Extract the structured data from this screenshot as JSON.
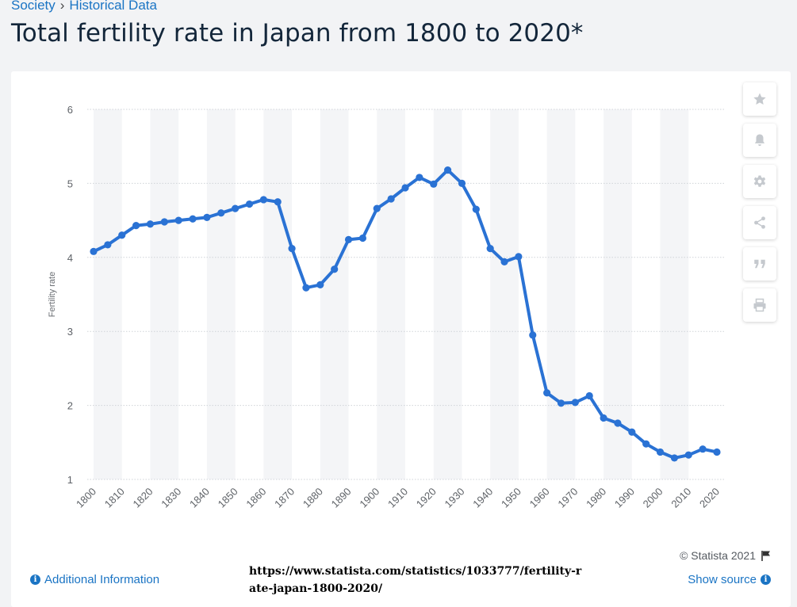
{
  "breadcrumb": {
    "items": [
      "Society",
      "Historical Data"
    ],
    "separator": "›"
  },
  "page_title": "Total fertility rate in Japan from 1800 to 2020*",
  "colors": {
    "line": "#2a72d4",
    "band": "#f4f5f7",
    "grid": "#cfd3d8",
    "link": "#1a74c4"
  },
  "toolbar": [
    {
      "icon": "star-icon",
      "label": ""
    },
    {
      "icon": "bell-icon",
      "label": ""
    },
    {
      "icon": "gear-icon",
      "label": ""
    },
    {
      "icon": "share-icon",
      "label": ""
    },
    {
      "icon": "quote-icon",
      "label": ""
    },
    {
      "icon": "print-icon",
      "label": ""
    }
  ],
  "chart_data": {
    "type": "line",
    "title": "",
    "xlabel": "",
    "ylabel": "Fertility rate",
    "ylim": [
      1,
      6
    ],
    "yticks": [
      1,
      2,
      3,
      4,
      5,
      6
    ],
    "xticks": [
      "1800",
      "1810",
      "1820",
      "1830",
      "1840",
      "1850",
      "1860",
      "1870",
      "1880",
      "1890",
      "1900",
      "1910",
      "1920",
      "1930",
      "1940",
      "1950",
      "1960",
      "1970",
      "1980",
      "1990",
      "2000",
      "2010",
      "2020"
    ],
    "grid": true,
    "legend": "none",
    "x": [
      1800,
      1805,
      1810,
      1815,
      1820,
      1825,
      1830,
      1835,
      1840,
      1845,
      1850,
      1855,
      1860,
      1865,
      1870,
      1875,
      1880,
      1885,
      1890,
      1895,
      1900,
      1905,
      1910,
      1915,
      1920,
      1925,
      1930,
      1935,
      1940,
      1945,
      1950,
      1955,
      1960,
      1965,
      1970,
      1975,
      1980,
      1985,
      1990,
      1995,
      2000,
      2005,
      2010,
      2015,
      2020
    ],
    "series": [
      {
        "values": [
          4.08,
          4.17,
          4.3,
          4.43,
          4.45,
          4.48,
          4.5,
          4.52,
          4.54,
          4.6,
          4.66,
          4.72,
          4.78,
          4.75,
          4.12,
          3.59,
          3.63,
          3.84,
          4.24,
          4.26,
          4.66,
          4.79,
          4.94,
          5.08,
          4.99,
          5.18,
          5.0,
          4.65,
          4.12,
          3.94,
          4.01,
          2.95,
          2.17,
          2.03,
          2.04,
          2.13,
          1.83,
          1.76,
          1.64,
          1.48,
          1.37,
          1.29,
          1.33,
          1.41,
          1.37
        ]
      }
    ]
  },
  "footer": {
    "copyright": "© Statista 2021",
    "additional_info": "Additional Information",
    "show_source": "Show source",
    "url_note": "https://www.statista.com/statistics/1033777/fertility-rate-japan-1800-2020/",
    "info_glyph": "i"
  }
}
